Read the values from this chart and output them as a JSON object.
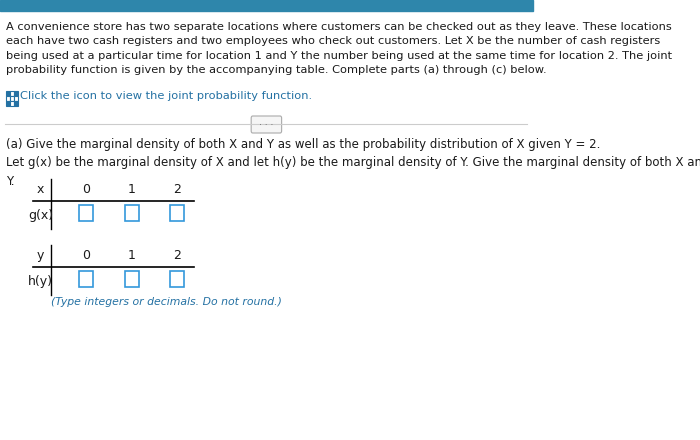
{
  "bg_color": "#ffffff",
  "text_color_dark": "#1a1a1a",
  "text_color_link": "#2471a3",
  "paragraph1": "A convenience store has two separate locations where customers can be checked out as they leave. These locations\neach have two cash registers and two employees who check out customers. Let X be the number of cash registers\nbeing used at a particular time for location 1 and Y the number being used at the same time for location 2. The joint\nprobability function is given by the accompanying table. Complete parts (a) through (c) below.",
  "link_text": "Click the icon to view the joint probability function.",
  "section_a_header": "(a) Give the marginal density of both X and Y as well as the probability distribution of X given Y = 2.",
  "section_a_body": "Let g(x) be the marginal density of X and let h(y) be the marginal density of Y. Give the marginal density of both X and\nY.",
  "table1_row1_vals": [
    "0",
    "1",
    "2"
  ],
  "table2_row1_vals": [
    "0",
    "1",
    "2"
  ],
  "footnote": "(Type integers or decimals. Do not round.)",
  "top_bar_color": "#2e86ab",
  "separator_color": "#cccccc",
  "box_color": "#3498db",
  "icon_color": "#2471a3"
}
